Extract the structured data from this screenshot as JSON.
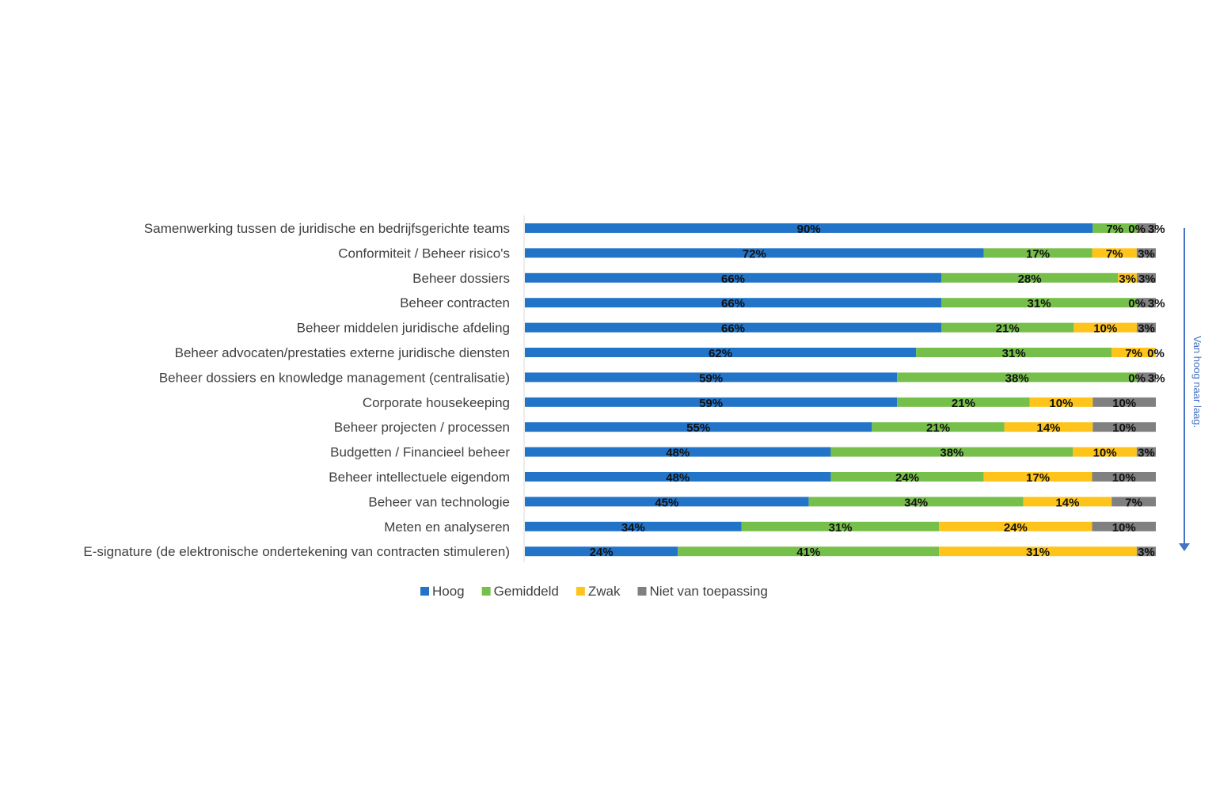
{
  "chart_data": {
    "type": "bar",
    "orientation": "horizontal",
    "stacked": "100%",
    "categories": [
      "Samenwerking tussen de juridische en bedrijfsgerichte teams",
      "Conformiteit / Beheer risico's",
      "Beheer dossiers",
      "Beheer contracten",
      "Beheer middelen juridische afdeling",
      "Beheer advocaten/prestaties externe juridische diensten",
      "Beheer dossiers en knowledge management (centralisatie)",
      "Corporate housekeeping",
      "Beheer projecten / processen",
      "Budgetten / Financieel beheer",
      "Beheer intellectuele eigendom",
      "Beheer van technologie",
      "Meten en analyseren",
      "E-signature (de elektronische ondertekening van contracten stimuleren)"
    ],
    "series": [
      {
        "name": "Hoog",
        "color": "#2274c8",
        "values": [
          90,
          72,
          66,
          66,
          66,
          62,
          59,
          59,
          55,
          48,
          48,
          45,
          34,
          24
        ]
      },
      {
        "name": "Gemiddeld",
        "color": "#77bf4b",
        "values": [
          7,
          17,
          28,
          31,
          21,
          31,
          38,
          21,
          21,
          38,
          24,
          34,
          31,
          41
        ]
      },
      {
        "name": "Zwak",
        "color": "#fec41b",
        "values": [
          0,
          7,
          3,
          0,
          10,
          7,
          0,
          10,
          14,
          10,
          17,
          14,
          24,
          31
        ]
      },
      {
        "name": "Niet van toepassing",
        "color": "#808080",
        "values": [
          3,
          3,
          3,
          3,
          3,
          0,
          3,
          10,
          10,
          3,
          10,
          7,
          10,
          3
        ]
      }
    ],
    "value_format": "{v}%",
    "legend_position": "bottom",
    "side_annotation": "Van hoog naar laag.",
    "grid": false
  }
}
